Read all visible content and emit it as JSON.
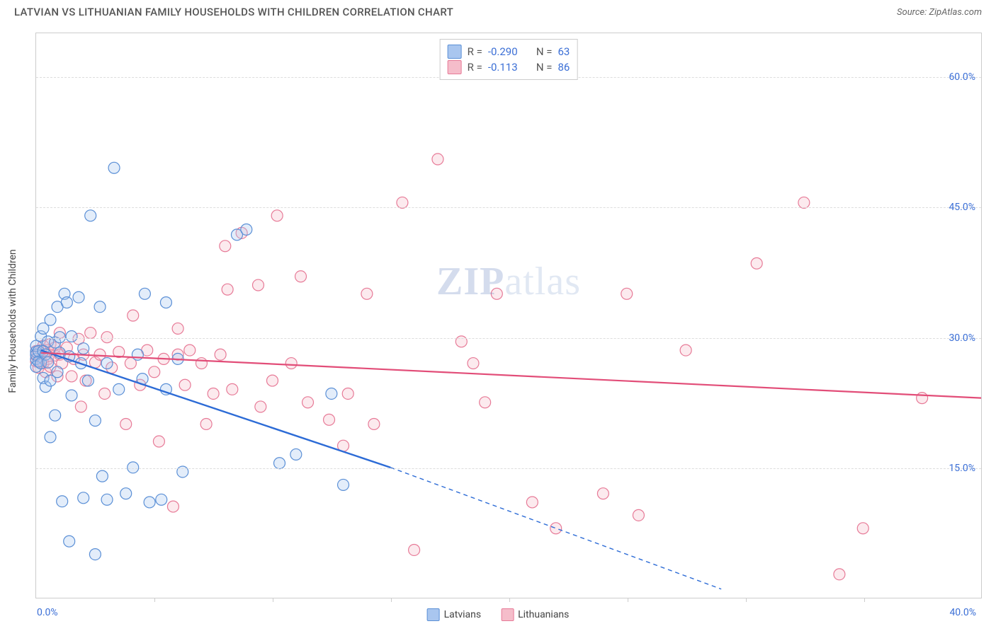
{
  "title": "LATVIAN VS LITHUANIAN FAMILY HOUSEHOLDS WITH CHILDREN CORRELATION CHART",
  "source_label": "Source: ",
  "source_name": "ZipAtlas.com",
  "y_axis_label": "Family Households with Children",
  "watermark_a": "ZIP",
  "watermark_b": "atlas",
  "chart": {
    "type": "scatter",
    "background_color": "#ffffff",
    "grid_color": "#dddddd",
    "border_color": "#cccccc",
    "tick_label_color": "#3b6fd6",
    "xlim": [
      0,
      40
    ],
    "ylim": [
      0,
      65
    ],
    "y_ticks": [
      15,
      30,
      45,
      60
    ],
    "y_tick_labels": [
      "15.0%",
      "30.0%",
      "45.0%",
      "60.0%"
    ],
    "x_ticks": [
      5,
      10,
      15,
      20,
      25,
      30,
      35
    ],
    "x_origin_label": "0.0%",
    "x_max_label": "40.0%",
    "marker_radius": 8,
    "marker_stroke_width": 1.2,
    "marker_fill_opacity": 0.32,
    "series": [
      {
        "name": "Latvians",
        "color_fill": "#a9c6ef",
        "color_stroke": "#5a8fd6",
        "regression": {
          "x1": 0.2,
          "y1": 28.5,
          "x2": 15.0,
          "y2": 15.0,
          "x2_ext": 29.0,
          "y2_ext": 1.0,
          "color": "#2c6bd6",
          "width": 2.4
        },
        "stats": {
          "R": "-0.290",
          "N": "63"
        },
        "points": [
          [
            0.0,
            27.5
          ],
          [
            0.0,
            28.3
          ],
          [
            0.0,
            28.0
          ],
          [
            0.0,
            26.6
          ],
          [
            0.0,
            29.0
          ],
          [
            0.1,
            27.2
          ],
          [
            0.1,
            28.4
          ],
          [
            0.2,
            27.0
          ],
          [
            0.2,
            30.1
          ],
          [
            0.3,
            28.4
          ],
          [
            0.3,
            25.3
          ],
          [
            0.3,
            31.0
          ],
          [
            0.4,
            28.0
          ],
          [
            0.4,
            24.3
          ],
          [
            0.5,
            27.1
          ],
          [
            0.5,
            29.5
          ],
          [
            0.6,
            25.0
          ],
          [
            0.6,
            18.5
          ],
          [
            0.6,
            32.0
          ],
          [
            0.8,
            29.4
          ],
          [
            0.8,
            21.0
          ],
          [
            0.9,
            26.0
          ],
          [
            0.9,
            33.5
          ],
          [
            1.0,
            28.2
          ],
          [
            1.0,
            30.0
          ],
          [
            1.1,
            11.1
          ],
          [
            1.2,
            35.0
          ],
          [
            1.3,
            34.0
          ],
          [
            1.4,
            27.8
          ],
          [
            1.4,
            6.5
          ],
          [
            1.5,
            23.3
          ],
          [
            1.5,
            30.1
          ],
          [
            1.8,
            34.6
          ],
          [
            1.9,
            27.0
          ],
          [
            2.0,
            11.5
          ],
          [
            2.0,
            28.7
          ],
          [
            2.2,
            25.0
          ],
          [
            2.3,
            44.0
          ],
          [
            2.5,
            5.0
          ],
          [
            2.5,
            20.4
          ],
          [
            2.7,
            33.5
          ],
          [
            2.8,
            14.0
          ],
          [
            3.0,
            27.0
          ],
          [
            3.0,
            11.3
          ],
          [
            3.3,
            49.5
          ],
          [
            3.5,
            24.0
          ],
          [
            3.8,
            12.0
          ],
          [
            4.1,
            15.0
          ],
          [
            4.3,
            28.0
          ],
          [
            4.5,
            25.2
          ],
          [
            4.6,
            35.0
          ],
          [
            4.8,
            11.0
          ],
          [
            5.3,
            11.3
          ],
          [
            5.5,
            34.0
          ],
          [
            5.5,
            24.0
          ],
          [
            6.0,
            27.5
          ],
          [
            6.2,
            14.5
          ],
          [
            8.5,
            41.8
          ],
          [
            8.9,
            42.4
          ],
          [
            10.3,
            15.5
          ],
          [
            11.0,
            16.5
          ],
          [
            12.5,
            23.5
          ],
          [
            13.0,
            13.0
          ]
        ]
      },
      {
        "name": "Lithuanians",
        "color_fill": "#f5bdca",
        "color_stroke": "#e77a97",
        "regression": {
          "x1": 0.2,
          "y1": 28.2,
          "x2": 40.0,
          "y2": 23.0,
          "color": "#e24d78",
          "width": 2.2
        },
        "stats": {
          "R": "-0.113",
          "N": "86"
        },
        "points": [
          [
            0.0,
            27.9
          ],
          [
            0.0,
            28.4
          ],
          [
            0.0,
            27.2
          ],
          [
            0.1,
            28.0
          ],
          [
            0.1,
            26.5
          ],
          [
            0.2,
            28.5
          ],
          [
            0.2,
            27.3
          ],
          [
            0.3,
            27.0
          ],
          [
            0.3,
            29.0
          ],
          [
            0.4,
            28.0
          ],
          [
            0.4,
            26.0
          ],
          [
            0.5,
            28.5
          ],
          [
            0.5,
            27.5
          ],
          [
            0.6,
            29.2
          ],
          [
            0.6,
            26.6
          ],
          [
            0.8,
            27.9
          ],
          [
            0.8,
            28.8
          ],
          [
            0.9,
            25.5
          ],
          [
            1.0,
            28.0
          ],
          [
            1.0,
            30.5
          ],
          [
            1.1,
            27.0
          ],
          [
            1.3,
            28.8
          ],
          [
            1.5,
            25.5
          ],
          [
            1.6,
            27.5
          ],
          [
            1.8,
            29.8
          ],
          [
            1.9,
            22.0
          ],
          [
            2.0,
            28.0
          ],
          [
            2.1,
            25.0
          ],
          [
            2.3,
            30.5
          ],
          [
            2.5,
            27.1
          ],
          [
            2.7,
            28.0
          ],
          [
            2.9,
            23.5
          ],
          [
            3.0,
            30.0
          ],
          [
            3.2,
            26.5
          ],
          [
            3.5,
            28.3
          ],
          [
            3.8,
            20.0
          ],
          [
            4.0,
            27.0
          ],
          [
            4.1,
            32.5
          ],
          [
            4.4,
            24.5
          ],
          [
            4.7,
            28.5
          ],
          [
            5.0,
            26.0
          ],
          [
            5.2,
            18.0
          ],
          [
            5.4,
            27.5
          ],
          [
            5.8,
            10.5
          ],
          [
            6.0,
            28.0
          ],
          [
            6.0,
            31.0
          ],
          [
            6.3,
            24.5
          ],
          [
            6.5,
            28.5
          ],
          [
            7.0,
            27.0
          ],
          [
            7.2,
            20.0
          ],
          [
            7.5,
            23.5
          ],
          [
            7.8,
            28.0
          ],
          [
            8.0,
            40.5
          ],
          [
            8.1,
            35.5
          ],
          [
            8.3,
            24.0
          ],
          [
            8.7,
            42.0
          ],
          [
            9.4,
            36.0
          ],
          [
            9.5,
            22.0
          ],
          [
            10.0,
            25.0
          ],
          [
            10.2,
            44.0
          ],
          [
            10.8,
            27.0
          ],
          [
            11.2,
            37.0
          ],
          [
            11.5,
            22.5
          ],
          [
            12.4,
            20.5
          ],
          [
            13.0,
            17.5
          ],
          [
            13.2,
            23.5
          ],
          [
            14.0,
            35.0
          ],
          [
            14.3,
            20.0
          ],
          [
            15.5,
            45.5
          ],
          [
            16.0,
            5.5
          ],
          [
            17.0,
            50.5
          ],
          [
            18.0,
            29.5
          ],
          [
            18.5,
            27.0
          ],
          [
            19.0,
            22.5
          ],
          [
            19.5,
            35.0
          ],
          [
            21.0,
            11.0
          ],
          [
            22.0,
            8.0
          ],
          [
            24.0,
            12.0
          ],
          [
            25.0,
            35.0
          ],
          [
            25.5,
            9.5
          ],
          [
            27.5,
            28.5
          ],
          [
            30.5,
            38.5
          ],
          [
            32.5,
            45.5
          ],
          [
            34.0,
            2.7
          ],
          [
            35.0,
            8.0
          ],
          [
            37.5,
            23.0
          ]
        ]
      }
    ]
  },
  "legend_bottom": [
    {
      "label": "Latvians",
      "fill": "#a9c6ef",
      "stroke": "#5a8fd6"
    },
    {
      "label": "Lithuanians",
      "fill": "#f5bdca",
      "stroke": "#e77a97"
    }
  ],
  "stats_labels": {
    "R": "R =",
    "N": "N ="
  }
}
